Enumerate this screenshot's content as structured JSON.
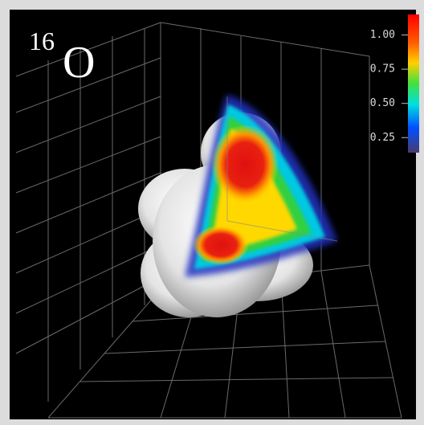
{
  "label": {
    "mass_number": "16",
    "element": "O"
  },
  "colorbar": {
    "range": [
      0.14,
      1.15
    ],
    "ticks": [
      {
        "value": 0.25,
        "label": "0.25"
      },
      {
        "value": 0.5,
        "label": "0.50"
      },
      {
        "value": 0.75,
        "label": "0.75"
      },
      {
        "value": 1,
        "label": "1.00"
      }
    ]
  }
}
